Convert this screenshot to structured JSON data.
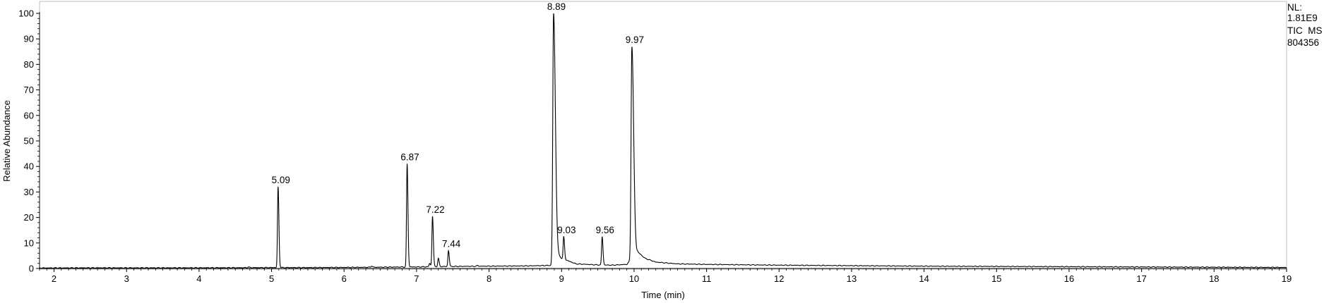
{
  "chart_data": {
    "type": "line",
    "xlabel": "Time (min)",
    "ylabel": "Relative Abundance",
    "xlim": [
      1.8,
      19.0
    ],
    "ylim": [
      0,
      100
    ],
    "x_ticks": [
      2,
      3,
      4,
      5,
      6,
      7,
      8,
      9,
      10,
      11,
      12,
      13,
      14,
      15,
      16,
      17,
      18,
      19
    ],
    "y_ticks": [
      0,
      10,
      20,
      30,
      40,
      50,
      60,
      70,
      80,
      90,
      100
    ],
    "grid": false,
    "info_box": {
      "nl_label": "NL:",
      "nl_value": "1.81E9",
      "scan_filter": "TIC  MS",
      "file_id": "804356"
    },
    "peaks": [
      {
        "time": 5.09,
        "abundance": 32,
        "label": "5.09"
      },
      {
        "time": 6.87,
        "abundance": 41,
        "label": "6.87"
      },
      {
        "time": 7.22,
        "abundance": 20.5,
        "label": "7.22"
      },
      {
        "time": 7.44,
        "abundance": 7,
        "label": "7.44"
      },
      {
        "time": 8.89,
        "abundance": 100,
        "label": "8.89"
      },
      {
        "time": 9.03,
        "abundance": 12.5,
        "label": "9.03"
      },
      {
        "time": 9.56,
        "abundance": 12.5,
        "label": "9.56"
      },
      {
        "time": 9.97,
        "abundance": 87,
        "label": "9.97"
      }
    ],
    "minor_peaks": [
      {
        "time": 7.18,
        "abundance": 2
      },
      {
        "time": 7.3,
        "abundance": 4
      },
      {
        "time": 7.84,
        "abundance": 1.2
      },
      {
        "time": 6.38,
        "abundance": 1.0
      },
      {
        "time": 4.68,
        "abundance": 0.6
      },
      {
        "time": 10.5,
        "abundance": 1.2
      },
      {
        "time": 13.12,
        "abundance": 1.0
      },
      {
        "time": 17.18,
        "abundance": 0.6
      }
    ],
    "series": [
      {
        "x": [
          1.8,
          2.5,
          3.5,
          4.5,
          5.0,
          5.5,
          6.5,
          6.86,
          6.9,
          7.0,
          7.2,
          7.5,
          8.0,
          8.5,
          8.85,
          8.93,
          9.0,
          9.2,
          9.5,
          9.7,
          9.9,
          10.05,
          10.15,
          10.3,
          10.6,
          11.0,
          12.0,
          13.0,
          14.0,
          15.0,
          16.0,
          17.0,
          18.0,
          19.0
        ],
        "y": [
          0.2,
          0.25,
          0.25,
          0.3,
          0.35,
          0.35,
          0.5,
          0.6,
          0.6,
          0.6,
          0.7,
          0.8,
          0.9,
          1.0,
          1.2,
          6.0,
          4.0,
          1.8,
          1.4,
          1.3,
          1.6,
          6.5,
          4.0,
          2.5,
          1.8,
          1.6,
          1.3,
          1.1,
          0.9,
          0.8,
          0.7,
          0.6,
          0.5,
          0.4
        ]
      }
    ]
  }
}
